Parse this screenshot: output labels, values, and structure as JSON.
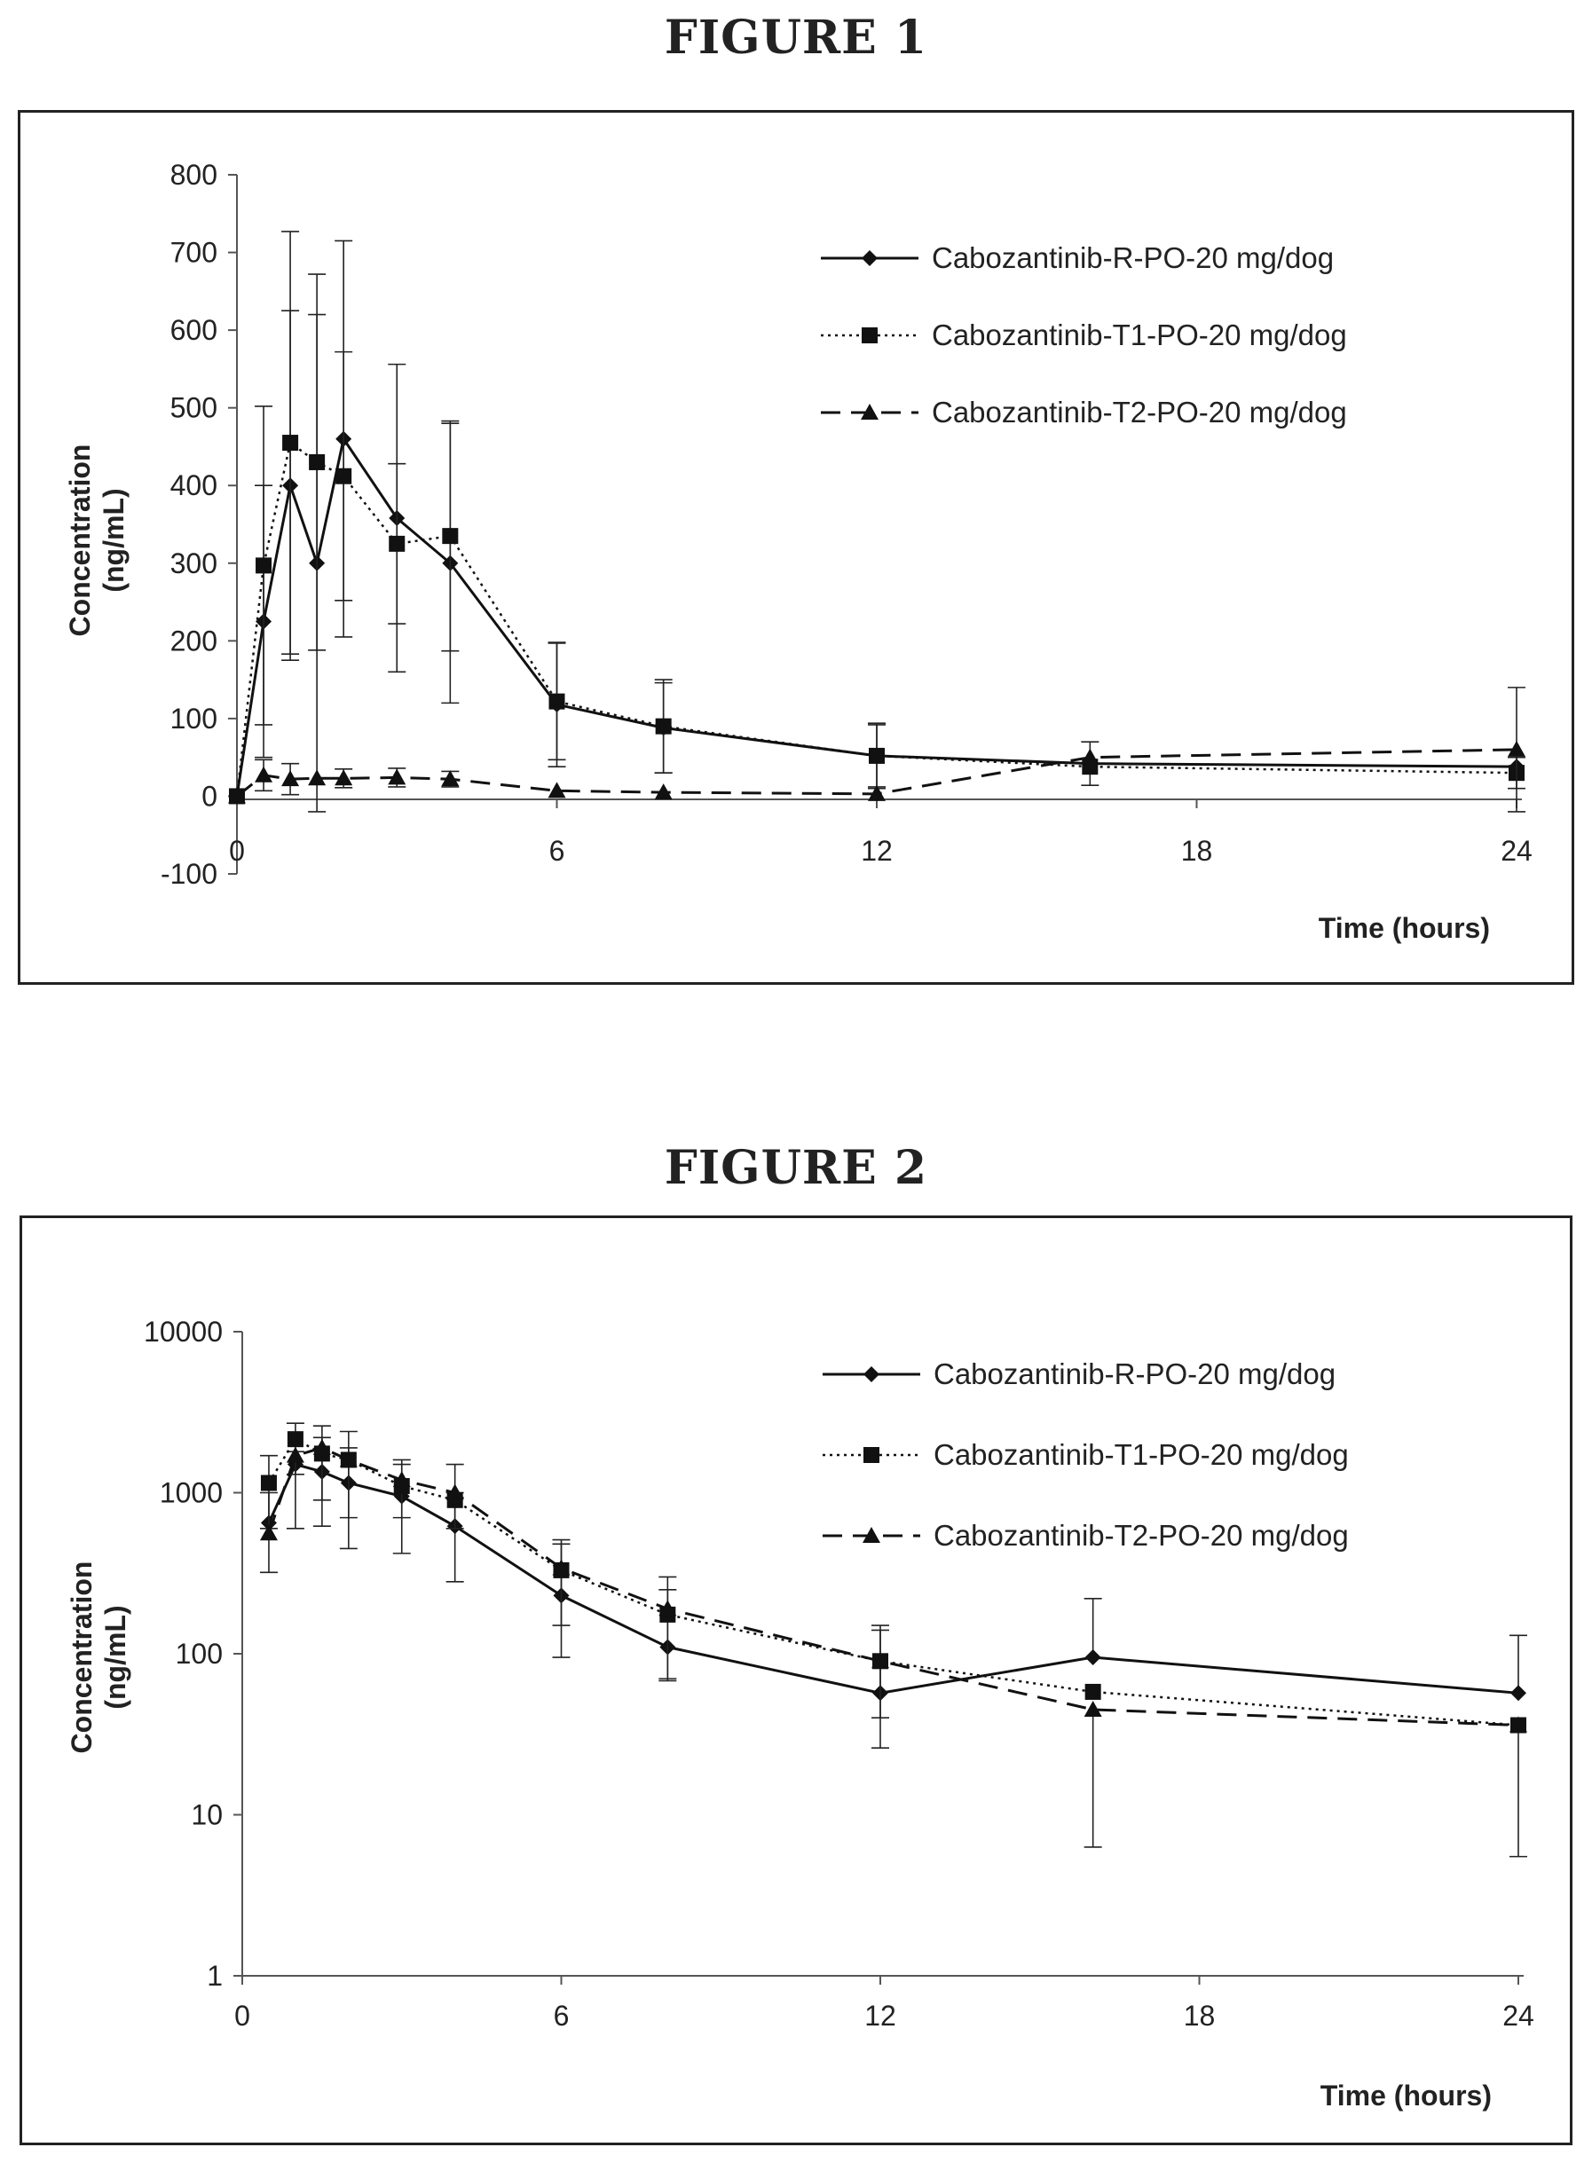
{
  "figures": [
    {
      "title": "FIGURE 1",
      "chart_data": {
        "type": "line",
        "title": "",
        "xlabel": "Time (hours)",
        "ylabel": "Concentration (ng/mL)",
        "ylabel_lines": [
          "Concentration",
          "(ng/mL)"
        ],
        "yscale": "linear",
        "xlim": [
          0,
          24
        ],
        "ylim": [
          -100,
          800
        ],
        "xticks": [
          0,
          6,
          12,
          18,
          24
        ],
        "xtick_labels": [
          "0",
          "6",
          "12",
          "18",
          "24"
        ],
        "yticks": [
          -100,
          0,
          100,
          200,
          300,
          400,
          500,
          600,
          700,
          800
        ],
        "ytick_labels": [
          "-100",
          "0",
          "100",
          "200",
          "300",
          "400",
          "500",
          "600",
          "700",
          "800"
        ],
        "grid": false,
        "legend_position": "top-right",
        "series": [
          {
            "name": "Cabozantinib-R-PO-20 mg/dog",
            "marker": "diamond",
            "line": "solid",
            "x": [
              0,
              0.5,
              1,
              1.5,
              2,
              3,
              4,
              6,
              8,
              12,
              16,
              24
            ],
            "y": [
              0,
              225,
              400,
              300,
              460,
              358,
              300,
              118,
              88,
              52,
              42,
              38
            ],
            "err": [
              0,
              175,
              225,
              320,
              255,
              198,
              180,
              80,
              58,
              40,
              28,
              0
            ]
          },
          {
            "name": "Cabozantinib-T1-PO-20 mg/dog",
            "marker": "square",
            "line": "dotted",
            "x": [
              0,
              0.5,
              1,
              1.5,
              2,
              3,
              4,
              6,
              8,
              12,
              16,
              24
            ],
            "y": [
              0,
              297,
              455,
              430,
              412,
              325,
              335,
              122,
              90,
              52,
              38,
              30
            ],
            "err": [
              0,
              205,
              272,
              242,
              160,
              103,
              148,
              75,
              60,
              42,
              0,
              20
            ]
          },
          {
            "name": "Cabozantinib-T2-PO-20 mg/dog",
            "marker": "triangle",
            "line": "dashed",
            "x": [
              0,
              0.5,
              1,
              1.5,
              2,
              3,
              4,
              6,
              8,
              12,
              16,
              24
            ],
            "y": [
              0,
              27,
              22,
              23,
              23,
              24,
              22,
              7,
              5,
              3,
              50,
              60
            ],
            "err": [
              0,
              20,
              20,
              0,
              12,
              12,
              10,
              0,
              0,
              0,
              0,
              80
            ]
          }
        ]
      }
    },
    {
      "title": "FIGURE 2",
      "chart_data": {
        "type": "line",
        "title": "",
        "xlabel": "Time (hours)",
        "ylabel": "Concentration (ng/mL)",
        "ylabel_lines": [
          "Concentration",
          "(ng/mL)"
        ],
        "yscale": "log",
        "xlim": [
          0,
          24
        ],
        "ylim": [
          1,
          10000
        ],
        "xticks": [
          0,
          6,
          12,
          18,
          24
        ],
        "xtick_labels": [
          "0",
          "6",
          "12",
          "18",
          "24"
        ],
        "yticks": [
          1,
          10,
          100,
          1000,
          10000
        ],
        "ytick_labels": [
          "1",
          "10",
          "100",
          "1000",
          "10000"
        ],
        "grid": false,
        "legend_position": "top-right",
        "series": [
          {
            "name": "Cabozantinib-R-PO-20 mg/dog",
            "marker": "diamond",
            "line": "solid",
            "x": [
              0.5,
              1,
              1.5,
              2,
              3,
              4,
              6,
              8,
              12,
              16,
              24
            ],
            "y": [
              650,
              1500,
              1350,
              1150,
              950,
              620,
              230,
              110,
              57,
              95,
              57
            ],
            "err_low": [
              320,
              600,
              620,
              450,
              420,
              280,
              95,
              68,
              26,
              0,
              0
            ],
            "err_high": [
              1000,
              1800,
              2200,
              1900,
              1500,
              1000,
              480,
              250,
              140,
              220,
              130
            ]
          },
          {
            "name": "Cabozantinib-T1-PO-20 mg/dog",
            "marker": "square",
            "line": "dotted",
            "x": [
              0.5,
              1,
              1.5,
              2,
              3,
              4,
              6,
              8,
              12,
              16,
              24
            ],
            "y": [
              1150,
              2150,
              1750,
              1600,
              1100,
              900,
              330,
              175,
              90,
              58,
              36
            ],
            "err_low": [
              600,
              1300,
              900,
              700,
              700,
              600,
              150,
              70,
              40,
              0,
              0
            ],
            "err_high": [
              1700,
              2700,
              2600,
              2400,
              1600,
              1500,
              510,
              300,
              150,
              0,
              0
            ]
          },
          {
            "name": "Cabozantinib-T2-PO-20 mg/dog",
            "marker": "triangle",
            "line": "dashed",
            "x": [
              0.5,
              1,
              1.5,
              2,
              3,
              4,
              6,
              8,
              12,
              16,
              24
            ],
            "y": [
              560,
              1700,
              1900,
              1600,
              1200,
              1000,
              340,
              190,
              90,
              45,
              36
            ],
            "err_low": [
              0,
              0,
              0,
              0,
              0,
              0,
              0,
              0,
              0,
              6.3,
              5.5
            ],
            "err_high": [
              0,
              0,
              0,
              0,
              0,
              0,
              0,
              0,
              0,
              0,
              0
            ]
          }
        ]
      }
    }
  ]
}
